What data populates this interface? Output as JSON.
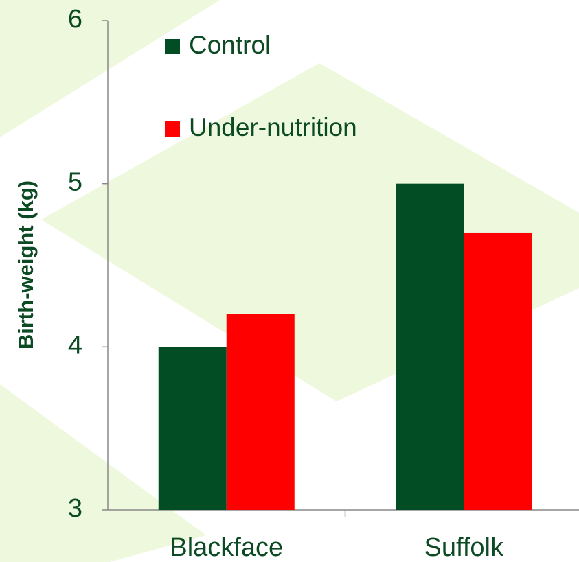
{
  "chart_data": {
    "type": "bar",
    "y_label": "Birth-weight (kg)",
    "categories": [
      "Blackface",
      "Suffolk"
    ],
    "series": [
      {
        "name": "Control",
        "color": "#024d24",
        "values": [
          4.0,
          5.0
        ]
      },
      {
        "name": "Under-nutrition",
        "color": "#ff0000",
        "values": [
          4.2,
          4.7
        ]
      }
    ],
    "ylim": [
      3,
      6
    ],
    "yticks": [
      3,
      4,
      5,
      6
    ],
    "grid": false,
    "legend": "upper left"
  }
}
